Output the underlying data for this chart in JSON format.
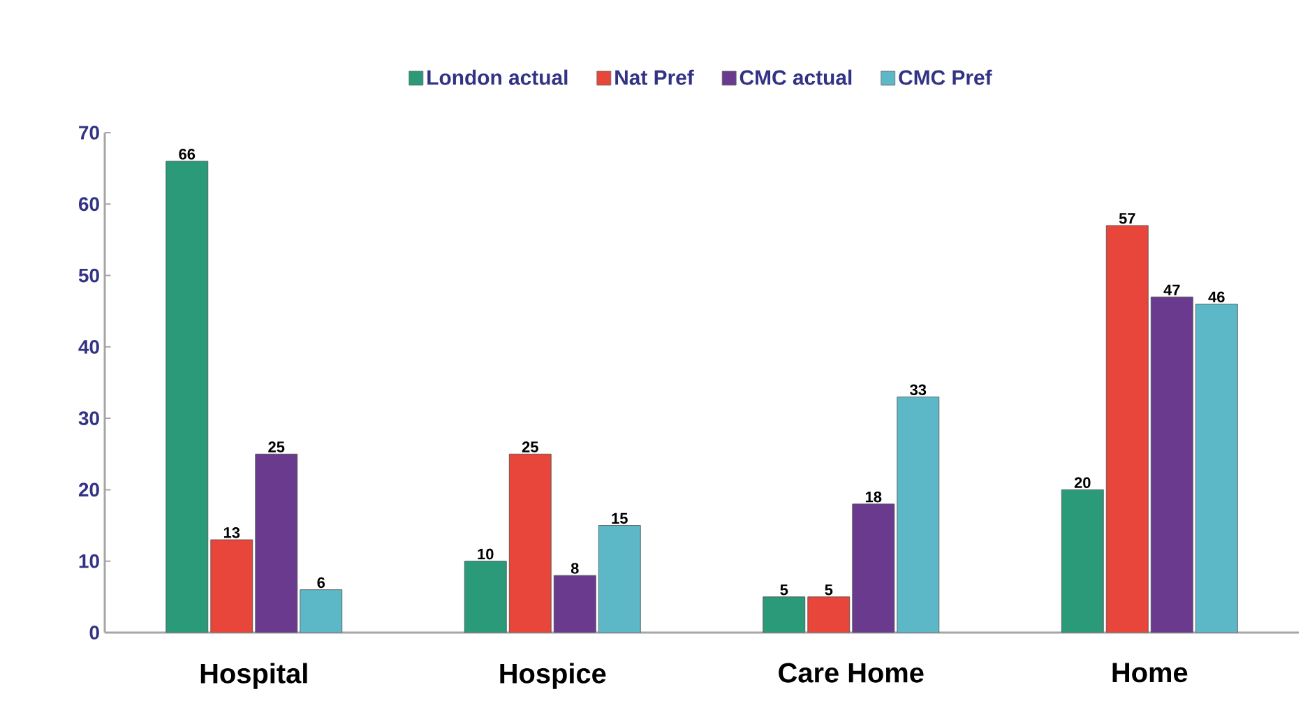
{
  "chart_data": {
    "type": "bar",
    "categories": [
      "Hospital",
      "Hospice",
      "Care Home",
      "Home"
    ],
    "series": [
      {
        "name": "London actual",
        "color": "#2a9a78",
        "values": [
          66,
          10,
          5,
          20
        ]
      },
      {
        "name": "Nat Pref",
        "color": "#e8463b",
        "values": [
          13,
          25,
          5,
          57
        ]
      },
      {
        "name": "CMC actual",
        "color": "#6a3a8e",
        "values": [
          25,
          8,
          18,
          47
        ]
      },
      {
        "name": "CMC Pref",
        "color": "#5cb7c7",
        "values": [
          6,
          15,
          33,
          46
        ]
      }
    ],
    "ylim": [
      0,
      70
    ],
    "yticks": [
      0,
      10,
      20,
      30,
      40,
      50,
      60,
      70
    ],
    "data_labels": true,
    "legend": "top",
    "grid": false
  }
}
